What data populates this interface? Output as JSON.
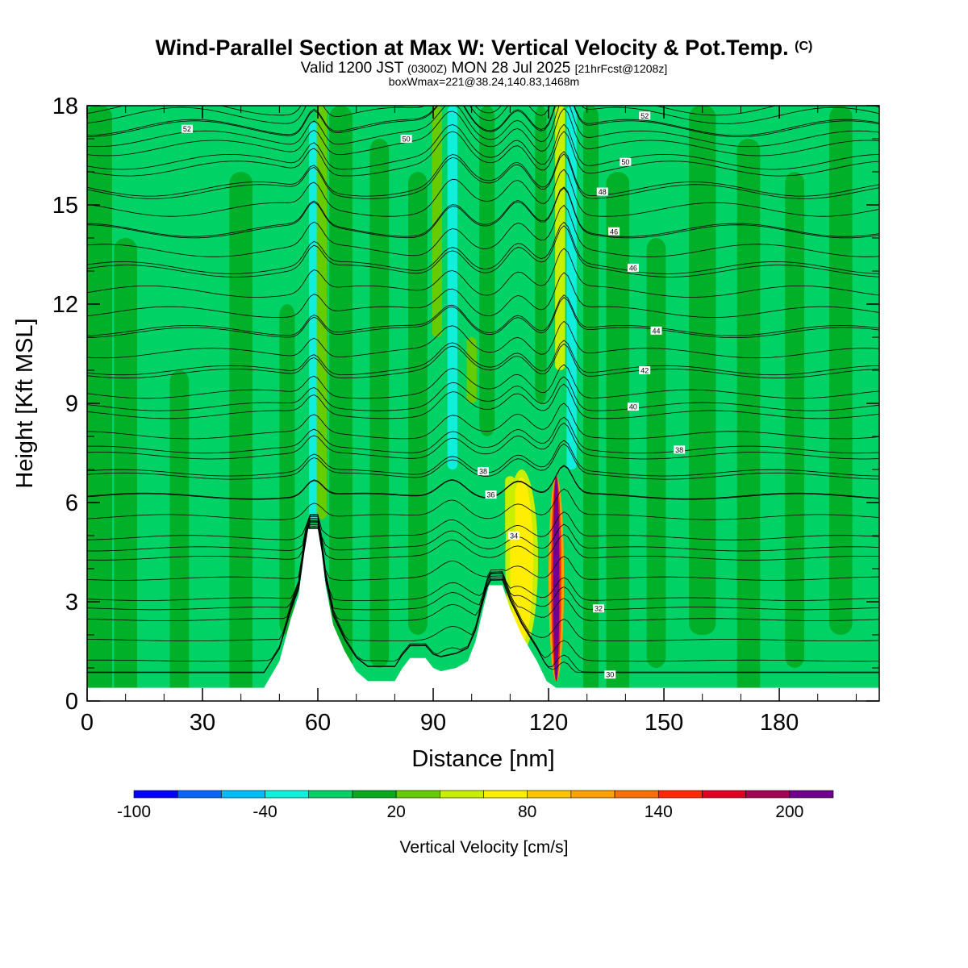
{
  "header": {
    "title": "Wind-Parallel Section at Max W: Vertical Velocity & Pot.Temp.",
    "copyright": "(C)",
    "valid_prefix": "Valid 1200 JST",
    "valid_utc": "(0300Z)",
    "valid_date": "MON 28 Jul 2025",
    "forecast": "[21hrFcst@1208z]",
    "boxwmax": "boxWmax=221@38.24,140.83,1468m"
  },
  "chart_data": {
    "type": "heatmap",
    "title": "Wind-Parallel Section at Max W: Vertical Velocity & Pot.Temp.",
    "xlabel": "Distance [nm]",
    "ylabel": "Height [Kft MSL]",
    "xlim": [
      0,
      206
    ],
    "ylim": [
      0,
      18
    ],
    "x_ticks": [
      0,
      30,
      60,
      90,
      120,
      150,
      180
    ],
    "y_ticks": [
      0,
      3,
      6,
      9,
      12,
      15,
      18
    ],
    "colorbar": {
      "label": "Vertical Velocity [cm/s]",
      "tick_labels": [
        -100,
        -40,
        20,
        80,
        140,
        200
      ],
      "bounds": [
        -100,
        -80,
        -60,
        -40,
        -20,
        0,
        20,
        40,
        60,
        80,
        100,
        120,
        140,
        160,
        180,
        200,
        220
      ],
      "colors": [
        "#0000ff",
        "#0066ff",
        "#00bbff",
        "#11eedd",
        "#00d266",
        "#00aa1e",
        "#66cc00",
        "#c8ee00",
        "#ffee00",
        "#ffc400",
        "#ffa000",
        "#ff6f00",
        "#ff2a00",
        "#dd0022",
        "#a80050",
        "#6f0090"
      ]
    },
    "background_class_value": 10,
    "velocity_features": [
      {
        "x": 59,
        "y_range": [
          5.5,
          17.5
        ],
        "value": -30
      },
      {
        "x": 61,
        "y_range": [
          5.5,
          18
        ],
        "value": 30
      },
      {
        "x": 95,
        "y_range": [
          7,
          18
        ],
        "value": -25
      },
      {
        "x": 91,
        "y_range": [
          11,
          18
        ],
        "value": 30
      },
      {
        "x": 100,
        "y_range": [
          9,
          11
        ],
        "value": 30
      },
      {
        "x": 113,
        "y_range": [
          1.5,
          7
        ],
        "value": 75
      },
      {
        "x": 110,
        "y_range": [
          5,
          6.8
        ],
        "value": 55
      },
      {
        "x": 122,
        "y_range": [
          0.6,
          6.8
        ],
        "value": 221
      },
      {
        "x": 126,
        "y_range": [
          7,
          18
        ],
        "value": -30
      },
      {
        "x": 123,
        "y_range": [
          10,
          18
        ],
        "value": 40
      }
    ],
    "terrain": [
      [
        0,
        0.4
      ],
      [
        46,
        0.4
      ],
      [
        50,
        1.2
      ],
      [
        53,
        2.5
      ],
      [
        55,
        3.2
      ],
      [
        56.5,
        4.5
      ],
      [
        57.5,
        5.2
      ],
      [
        60,
        5.2
      ],
      [
        61,
        4.5
      ],
      [
        62,
        3.5
      ],
      [
        64,
        2.3
      ],
      [
        67,
        1.5
      ],
      [
        70,
        0.9
      ],
      [
        73,
        0.6
      ],
      [
        80,
        0.6
      ],
      [
        82,
        1.0
      ],
      [
        84,
        1.3
      ],
      [
        88,
        1.3
      ],
      [
        90,
        1.0
      ],
      [
        92,
        0.9
      ],
      [
        96,
        1.0
      ],
      [
        99,
        1.2
      ],
      [
        101,
        1.8
      ],
      [
        103,
        2.8
      ],
      [
        104.5,
        3.5
      ],
      [
        108,
        3.5
      ],
      [
        110,
        2.8
      ],
      [
        113,
        2.0
      ],
      [
        117,
        1.2
      ],
      [
        119.5,
        0.6
      ],
      [
        122,
        0.4
      ],
      [
        206,
        0.4
      ]
    ],
    "isentropes": [
      {
        "label": "30",
        "h": 0.8,
        "label_x": 136
      },
      {
        "label": "32",
        "h": 2.8,
        "label_x": 133
      },
      {
        "label": "34",
        "h": 4.6,
        "label_x": 111
      },
      {
        "label": "36",
        "h": 6.2,
        "label_x": 105
      },
      {
        "label": "38",
        "h": 6.9,
        "label_x": 103
      },
      {
        "label": "38",
        "h": 7.6,
        "label_x": 154
      },
      {
        "label": "40",
        "h": 8.9,
        "label_x": 142
      },
      {
        "label": "42",
        "h": 10.0,
        "label_x": 145
      },
      {
        "label": "44",
        "h": 11.2,
        "label_x": 148
      },
      {
        "label": "46",
        "h": 13.1,
        "label_x": 142
      },
      {
        "label": "46",
        "h": 14.2,
        "label_x": 137
      },
      {
        "label": "48",
        "h": 15.4,
        "label_x": 134
      },
      {
        "label": "50",
        "h": 16.3,
        "label_x": 140
      },
      {
        "label": "50",
        "h": 17.0,
        "label_x": 83
      },
      {
        "label": "52",
        "h": 17.3,
        "label_x": 26
      },
      {
        "label": "52",
        "h": 17.7,
        "label_x": 145
      }
    ]
  }
}
